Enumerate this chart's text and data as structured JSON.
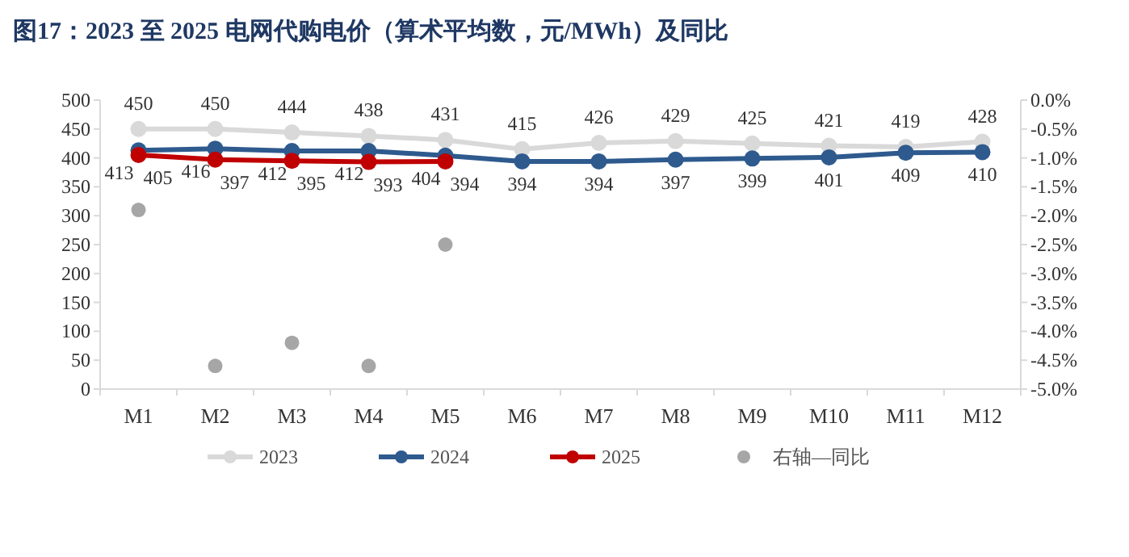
{
  "chart_data": {
    "type": "line",
    "title": "图17：2023 至 2025 电网代购电价（算术平均数，元/MWh）及同比",
    "categories": [
      "M1",
      "M2",
      "M3",
      "M4",
      "M5",
      "M6",
      "M7",
      "M8",
      "M9",
      "M10",
      "M11",
      "M12"
    ],
    "ylim": [
      0,
      500
    ],
    "yticks": [
      0,
      50,
      100,
      150,
      200,
      250,
      300,
      350,
      400,
      450,
      500
    ],
    "y2lim": [
      -5.0,
      0.0
    ],
    "y2ticks": [
      {
        "value": -5.0,
        "label": "-5.0%"
      },
      {
        "value": -4.5,
        "label": "-4.5%"
      },
      {
        "value": -4.0,
        "label": "-4.0%"
      },
      {
        "value": -3.5,
        "label": "-3.5%"
      },
      {
        "value": -3.0,
        "label": "-3.0%"
      },
      {
        "value": -2.5,
        "label": "-2.5%"
      },
      {
        "value": -2.0,
        "label": "-2.0%"
      },
      {
        "value": -1.5,
        "label": "-1.5%"
      },
      {
        "value": -1.0,
        "label": "-1.0%"
      },
      {
        "value": -0.5,
        "label": "-0.5%"
      },
      {
        "value": 0.0,
        "label": "0.0%"
      }
    ],
    "grid": false,
    "legend": "bottom",
    "marker": "circle",
    "line_style": "solid",
    "series": [
      {
        "name": "2023",
        "color": "#d9d9d9",
        "values": [
          450,
          450,
          444,
          438,
          431,
          415,
          426,
          429,
          425,
          421,
          419,
          428
        ],
        "value_labels": [
          "450",
          "450",
          "444",
          "438",
          "431",
          "415",
          "426",
          "429",
          "425",
          "421",
          "419",
          "428"
        ]
      },
      {
        "name": "2024",
        "color": "#2e5a8e",
        "values": [
          413,
          416,
          412,
          412,
          404,
          394,
          394,
          397,
          399,
          401,
          409,
          410
        ],
        "value_labels": [
          "413",
          "416",
          "412",
          "412",
          "404",
          "394",
          "394",
          "397",
          "399",
          "401",
          "409",
          "410"
        ]
      },
      {
        "name": "2025",
        "color": "#c00000",
        "values": [
          405,
          397,
          395,
          393,
          394,
          null,
          null,
          null,
          null,
          null,
          null,
          null
        ],
        "value_labels": [
          "405",
          "397",
          "395",
          "393",
          "394",
          null,
          null,
          null,
          null,
          null,
          null,
          null
        ]
      },
      {
        "name": "右轴—同比",
        "type": "scatter",
        "axis": "y2",
        "color": "#a6a6a6",
        "values": [
          -1.9,
          -4.6,
          -4.2,
          -4.6,
          -2.5,
          null,
          null,
          null,
          null,
          null,
          null,
          null
        ]
      }
    ]
  }
}
